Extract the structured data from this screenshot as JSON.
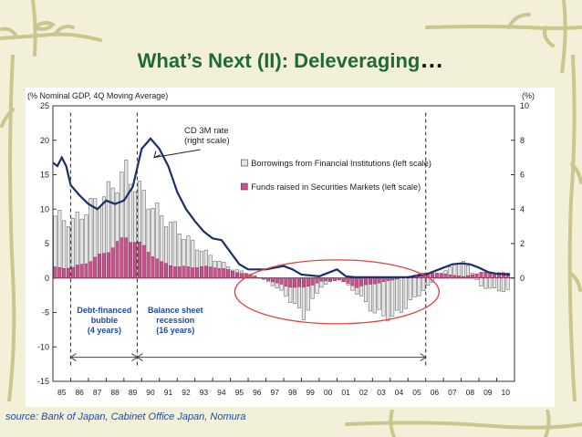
{
  "slide": {
    "title": "What’s Next (II): Deleveraging",
    "title_dots": "…",
    "source": "source: Bank of Japan, Cabinet Office Japan, Nomura",
    "colors": {
      "background": "#f3f0da",
      "title": "#1f6b34",
      "source": "#1f4aa8",
      "deco": "#c9c78e",
      "bar_borrow": "#e6e6e6",
      "bar_borrow_edge": "#555555",
      "bar_funds": "#c9528a",
      "bar_funds_edge": "#7a1f4f",
      "line": "#1b2f6b",
      "ellipse": "#e0443b",
      "annotation": "#1f4aa8"
    }
  },
  "chart_data": {
    "type": "bar",
    "left_axis_label": "(% Nominal GDP, 4Q Moving Average)",
    "right_axis_label": "(%)",
    "ylim_left": [
      -15,
      25
    ],
    "ylim_right": [
      -6,
      10
    ],
    "left_ticks": [
      "25",
      "20",
      "15",
      "10",
      "5",
      "0",
      "-5",
      "-10",
      "-15"
    ],
    "right_ticks": [
      "10",
      "8",
      "6",
      "4",
      "2",
      "0"
    ],
    "right_tick_values": [
      10,
      8,
      6,
      4,
      2,
      0
    ],
    "x_ticks": [
      "85",
      "86",
      "87",
      "88",
      "89",
      "90",
      "91",
      "92",
      "93",
      "94",
      "95",
      "96",
      "97",
      "98",
      "99",
      "00",
      "01",
      "02",
      "03",
      "04",
      "05",
      "06",
      "07",
      "08",
      "09",
      "10"
    ],
    "legend": {
      "line": "CD 3M rate\n(right scale)",
      "borrowings": "Borrowings from Financial Institutions (left scale)",
      "funds": "Funds raised in Securities Markets (left scale)"
    },
    "annotations": {
      "bubble": "Debt-financed\nbubble\n(4 years)",
      "recession": "Balance sheet\nrecession\n(16 years)"
    },
    "marker_years": [
      1986,
      1989.75,
      2006
    ],
    "borrowings_annual": [
      9.0,
      8.2,
      10.5,
      12.5,
      15.5,
      12.0,
      9.0,
      6.8,
      4.5,
      2.8,
      1.3,
      0.6,
      -0.5,
      -2.5,
      -5.5,
      -1.2,
      0.0,
      -2.2,
      -5.0,
      -5.8,
      -3.5,
      -1.2,
      1.2,
      2.6,
      -1.2,
      -1.8,
      -1.8
    ],
    "funds_annual": [
      1.5,
      1.5,
      2.5,
      4.0,
      6.0,
      4.5,
      2.2,
      1.6,
      1.6,
      1.6,
      1.0,
      0.4,
      -0.3,
      -1.2,
      -1.4,
      -0.5,
      -0.3,
      -1.3,
      -0.8,
      -0.3,
      0.3,
      0.8,
      0.6,
      0.2,
      0.8,
      0.8,
      0.6
    ],
    "cd_rate": [
      [
        1985.0,
        6.7
      ],
      [
        1985.25,
        6.5
      ],
      [
        1985.5,
        7.0
      ],
      [
        1985.75,
        6.5
      ],
      [
        1986.0,
        5.4
      ],
      [
        1986.5,
        4.8
      ],
      [
        1987.0,
        4.3
      ],
      [
        1987.5,
        4.0
      ],
      [
        1988.0,
        4.5
      ],
      [
        1988.5,
        4.3
      ],
      [
        1989.0,
        4.5
      ],
      [
        1989.5,
        5.3
      ],
      [
        1989.75,
        6.4
      ],
      [
        1990.0,
        7.5
      ],
      [
        1990.5,
        8.1
      ],
      [
        1990.75,
        7.8
      ],
      [
        1991.0,
        7.5
      ],
      [
        1991.5,
        6.5
      ],
      [
        1992.0,
        5.0
      ],
      [
        1992.5,
        4.0
      ],
      [
        1993.0,
        3.3
      ],
      [
        1993.5,
        2.7
      ],
      [
        1994.0,
        2.3
      ],
      [
        1994.5,
        2.2
      ],
      [
        1995.0,
        1.5
      ],
      [
        1995.5,
        0.8
      ],
      [
        1996.0,
        0.5
      ],
      [
        1997.0,
        0.5
      ],
      [
        1997.5,
        0.6
      ],
      [
        1998.0,
        0.7
      ],
      [
        1998.5,
        0.5
      ],
      [
        1999.0,
        0.2
      ],
      [
        2000.0,
        0.1
      ],
      [
        2000.5,
        0.3
      ],
      [
        2001.0,
        0.5
      ],
      [
        2001.5,
        0.1
      ],
      [
        2002.0,
        0.05
      ],
      [
        2005.0,
        0.05
      ],
      [
        2006.0,
        0.2
      ],
      [
        2006.5,
        0.4
      ],
      [
        2007.0,
        0.6
      ],
      [
        2007.5,
        0.8
      ],
      [
        2008.0,
        0.85
      ],
      [
        2008.5,
        0.8
      ],
      [
        2009.0,
        0.6
      ],
      [
        2009.5,
        0.35
      ],
      [
        2010.0,
        0.25
      ],
      [
        2010.75,
        0.2
      ]
    ]
  }
}
